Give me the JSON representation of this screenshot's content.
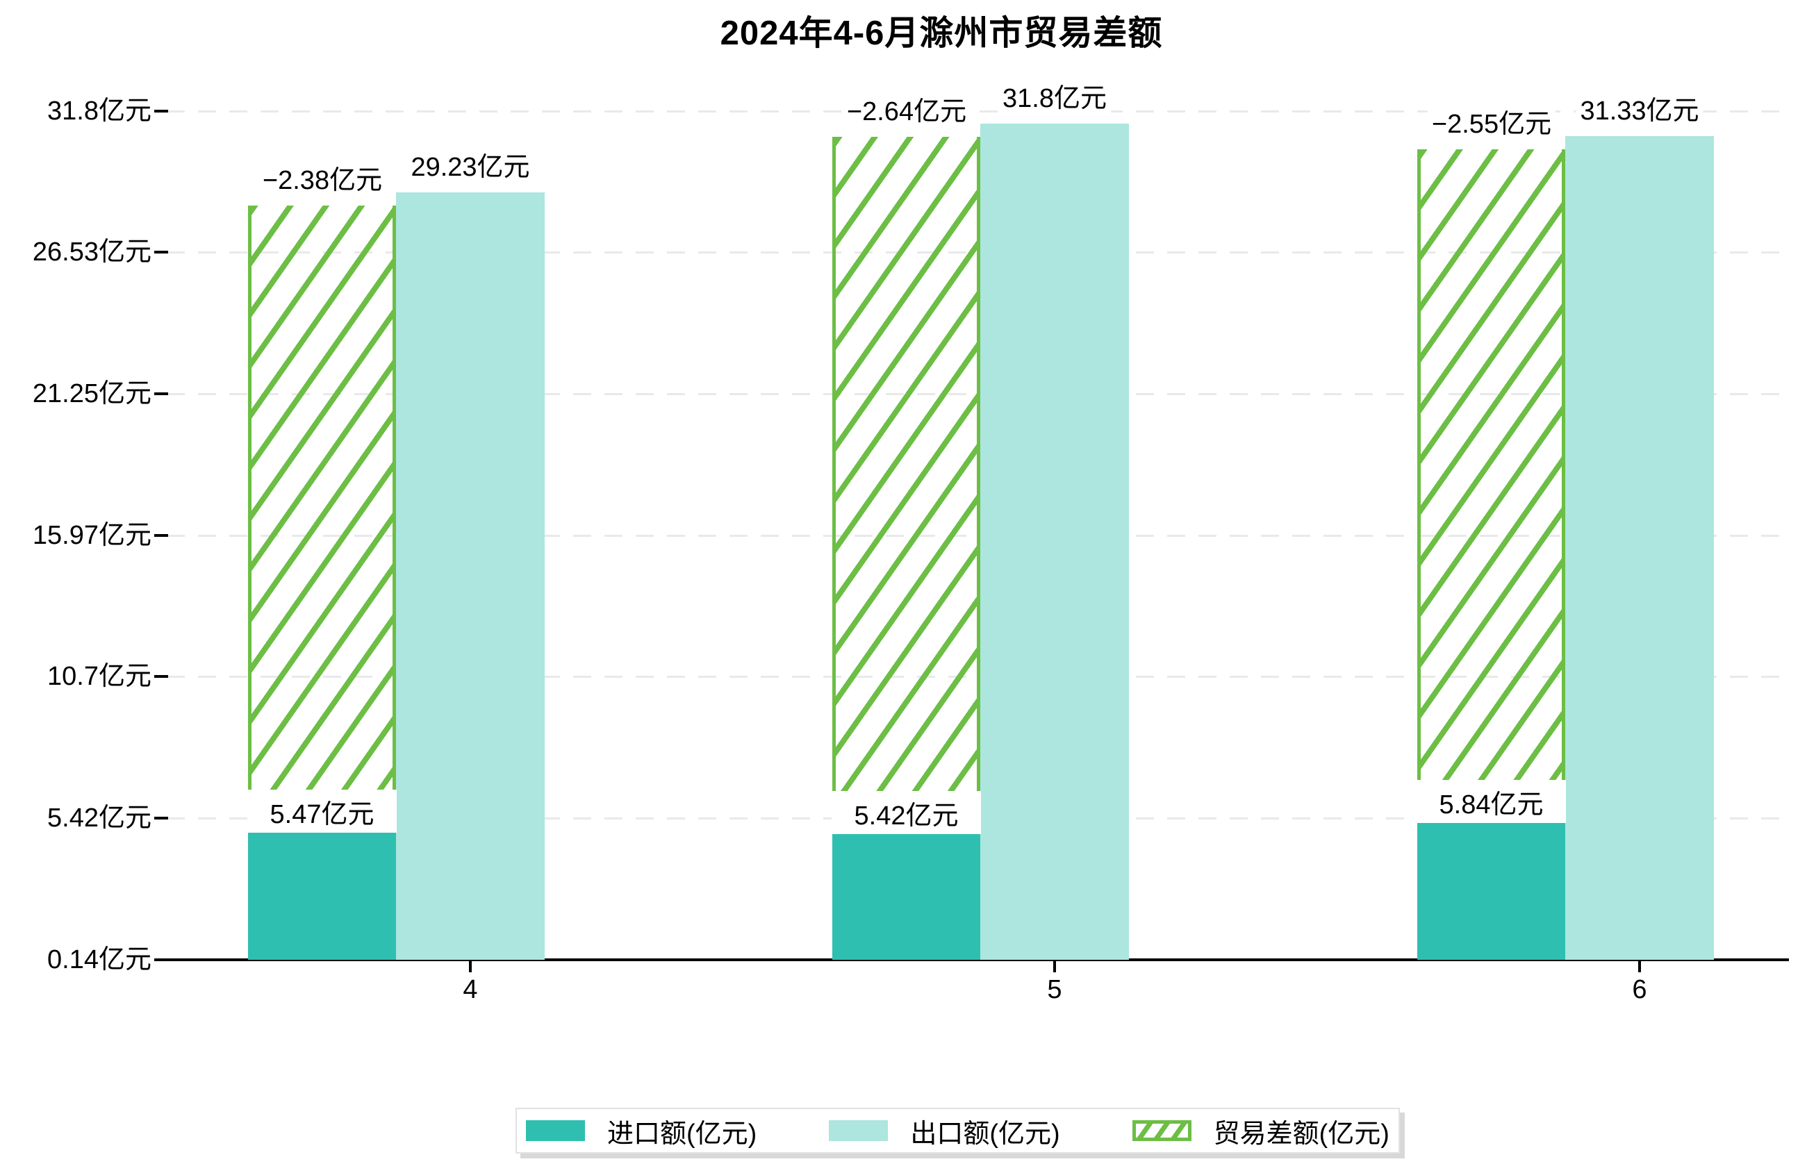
{
  "header": {
    "title": "2024年4-6月滁州市贸易差额"
  },
  "chart_data": {
    "type": "bar",
    "title": "2024年4-6月滁州市贸易差额",
    "categories": [
      "4",
      "5",
      "6"
    ],
    "series": [
      {
        "name": "进口额(亿元)",
        "role": "import",
        "values": [
          5.47,
          5.42,
          5.84
        ],
        "data_labels": [
          "5.47亿元",
          "5.42亿元",
          "5.84亿元"
        ],
        "color": "#2fbfb1",
        "style": "solid"
      },
      {
        "name": "出口额(亿元)",
        "role": "export",
        "values": [
          29.23,
          31.8,
          31.33
        ],
        "data_labels": [
          "29.23亿元",
          "31.8亿元",
          "31.33亿元"
        ],
        "color": "#ace6de",
        "style": "solid"
      },
      {
        "name": "贸易差额(亿元)",
        "role": "balance",
        "values": [
          -2.38,
          -2.64,
          -2.55
        ],
        "data_labels": [
          "−2.38亿元",
          "−2.64亿元",
          "−2.55亿元"
        ],
        "color": "#6cbe45",
        "style": "hatched-outline",
        "note": "hatched bar spans from import bar top up to export bar top"
      }
    ],
    "y_axis": {
      "tick_labels": [
        "0.14亿元",
        "5.42亿元",
        "10.7亿元",
        "15.97亿元",
        "21.25亿元",
        "26.53亿元",
        "31.8亿元"
      ],
      "tick_values": [
        0.14,
        5.42,
        10.7,
        15.97,
        21.25,
        26.53,
        31.8
      ],
      "range": [
        0.14,
        31.8
      ]
    },
    "x_axis": {
      "tick_labels": [
        "4",
        "5",
        "6"
      ]
    },
    "grid": {
      "horizontal": true,
      "style": "dashed",
      "color": "#e9e9e9"
    },
    "legend": {
      "position": "bottom",
      "entries": [
        "进口额(亿元)",
        "出口额(亿元)",
        "贸易差额(亿元)"
      ]
    },
    "colors": {
      "import": "#2fbfb1",
      "export": "#ace6de",
      "balance": "#6cbe45",
      "gridline": "#e9e9e9",
      "axis": "#000000"
    }
  }
}
